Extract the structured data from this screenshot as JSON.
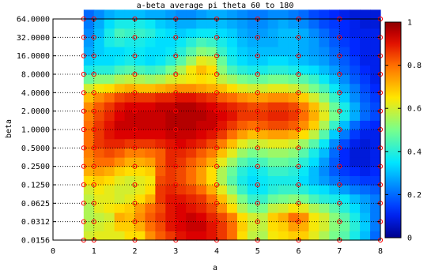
{
  "chart_data": {
    "type": "heatmap",
    "title": "a-beta average pi theta 60 to 180",
    "xlabel": "a",
    "ylabel": "beta",
    "x_ticks": [
      "0",
      "1",
      "2",
      "3",
      "4",
      "5",
      "6",
      "7",
      "8"
    ],
    "y_ticks": [
      "0.0156",
      "0.0312",
      "0.0625",
      "0.1250",
      "0.2500",
      "0.5000",
      "1.0000",
      "2.0000",
      "4.0000",
      "8.0000",
      "16.0000",
      "32.0000",
      "64.0000"
    ],
    "xlim": [
      0,
      8
    ],
    "y_log2_range": [
      -6,
      6
    ],
    "colorbar": {
      "ticks": [
        "0",
        "0.2",
        "0.4",
        "0.6",
        "0.8",
        "1"
      ],
      "range": [
        0,
        1
      ]
    },
    "grid": true,
    "sample_points": {
      "a": [
        0.75,
        1,
        2,
        3,
        4,
        5,
        6,
        7,
        8
      ],
      "beta_exponent": [
        -6,
        -5,
        -4,
        -3,
        -2,
        -1,
        0,
        1,
        2,
        3,
        4,
        5,
        6
      ]
    },
    "grid_values": {
      "x_step": 0.25,
      "x_start": 0.75,
      "y_step": 0.5,
      "y_start": -6,
      "rows_bottom_to_top": [
        [
          0.6,
          0.62,
          0.62,
          0.62,
          0.66,
          0.66,
          0.76,
          0.82,
          0.86,
          0.9,
          0.92,
          0.92,
          0.9,
          0.86,
          0.8,
          0.66,
          0.58,
          0.56,
          0.64,
          0.66,
          0.68,
          0.68,
          0.62,
          0.56,
          0.5,
          0.46,
          0.38,
          0.3,
          0.2
        ],
        [
          0.58,
          0.6,
          0.62,
          0.68,
          0.68,
          0.72,
          0.8,
          0.84,
          0.9,
          0.92,
          0.94,
          0.94,
          0.9,
          0.86,
          0.8,
          0.68,
          0.6,
          0.58,
          0.66,
          0.68,
          0.74,
          0.72,
          0.64,
          0.6,
          0.52,
          0.48,
          0.4,
          0.32,
          0.22
        ],
        [
          0.56,
          0.58,
          0.6,
          0.72,
          0.7,
          0.76,
          0.82,
          0.86,
          0.9,
          0.92,
          0.94,
          0.92,
          0.88,
          0.84,
          0.78,
          0.66,
          0.6,
          0.58,
          0.68,
          0.72,
          0.8,
          0.76,
          0.64,
          0.6,
          0.52,
          0.46,
          0.38,
          0.3,
          0.22
        ],
        [
          0.56,
          0.62,
          0.64,
          0.66,
          0.68,
          0.74,
          0.8,
          0.84,
          0.9,
          0.92,
          0.9,
          0.88,
          0.84,
          0.76,
          0.66,
          0.56,
          0.5,
          0.5,
          0.58,
          0.6,
          0.64,
          0.62,
          0.56,
          0.52,
          0.46,
          0.4,
          0.34,
          0.28,
          0.22
        ],
        [
          0.58,
          0.62,
          0.62,
          0.6,
          0.62,
          0.66,
          0.72,
          0.86,
          0.9,
          0.9,
          0.88,
          0.86,
          0.8,
          0.7,
          0.6,
          0.5,
          0.42,
          0.42,
          0.48,
          0.5,
          0.52,
          0.5,
          0.44,
          0.4,
          0.38,
          0.36,
          0.3,
          0.26,
          0.22
        ],
        [
          0.6,
          0.64,
          0.62,
          0.6,
          0.6,
          0.62,
          0.66,
          0.86,
          0.88,
          0.86,
          0.84,
          0.8,
          0.72,
          0.62,
          0.52,
          0.42,
          0.36,
          0.36,
          0.4,
          0.42,
          0.42,
          0.4,
          0.36,
          0.34,
          0.3,
          0.26,
          0.22,
          0.2,
          0.18
        ],
        [
          0.66,
          0.68,
          0.66,
          0.62,
          0.6,
          0.62,
          0.64,
          0.84,
          0.86,
          0.84,
          0.8,
          0.74,
          0.66,
          0.56,
          0.46,
          0.38,
          0.34,
          0.36,
          0.38,
          0.38,
          0.38,
          0.34,
          0.3,
          0.26,
          0.22,
          0.18,
          0.16,
          0.14,
          0.14
        ],
        [
          0.72,
          0.74,
          0.72,
          0.68,
          0.66,
          0.66,
          0.68,
          0.82,
          0.86,
          0.84,
          0.8,
          0.74,
          0.66,
          0.56,
          0.48,
          0.4,
          0.36,
          0.38,
          0.42,
          0.42,
          0.4,
          0.36,
          0.3,
          0.24,
          0.18,
          0.14,
          0.12,
          0.1,
          0.12
        ],
        [
          0.76,
          0.8,
          0.8,
          0.76,
          0.72,
          0.72,
          0.74,
          0.82,
          0.88,
          0.86,
          0.82,
          0.78,
          0.72,
          0.62,
          0.54,
          0.46,
          0.42,
          0.44,
          0.48,
          0.48,
          0.46,
          0.4,
          0.34,
          0.26,
          0.18,
          0.12,
          0.08,
          0.08,
          0.1
        ],
        [
          0.78,
          0.82,
          0.84,
          0.82,
          0.78,
          0.78,
          0.8,
          0.82,
          0.88,
          0.88,
          0.86,
          0.82,
          0.78,
          0.7,
          0.62,
          0.54,
          0.5,
          0.52,
          0.54,
          0.54,
          0.52,
          0.46,
          0.38,
          0.3,
          0.2,
          0.12,
          0.08,
          0.08,
          0.1
        ],
        [
          0.8,
          0.86,
          0.88,
          0.88,
          0.86,
          0.86,
          0.86,
          0.88,
          0.9,
          0.92,
          0.9,
          0.88,
          0.84,
          0.78,
          0.7,
          0.62,
          0.58,
          0.6,
          0.62,
          0.62,
          0.6,
          0.54,
          0.46,
          0.36,
          0.24,
          0.16,
          0.1,
          0.08,
          0.1
        ],
        [
          0.8,
          0.86,
          0.9,
          0.92,
          0.92,
          0.92,
          0.92,
          0.92,
          0.94,
          0.94,
          0.94,
          0.92,
          0.9,
          0.86,
          0.8,
          0.74,
          0.7,
          0.72,
          0.74,
          0.74,
          0.72,
          0.66,
          0.58,
          0.46,
          0.32,
          0.22,
          0.14,
          0.1,
          0.1
        ],
        [
          0.8,
          0.86,
          0.9,
          0.94,
          0.94,
          0.94,
          0.94,
          0.94,
          0.96,
          0.96,
          0.96,
          0.94,
          0.94,
          0.9,
          0.86,
          0.82,
          0.8,
          0.82,
          0.84,
          0.84,
          0.82,
          0.76,
          0.68,
          0.56,
          0.42,
          0.3,
          0.2,
          0.14,
          0.12
        ],
        [
          0.78,
          0.84,
          0.88,
          0.92,
          0.94,
          0.94,
          0.94,
          0.94,
          0.96,
          0.96,
          0.96,
          0.96,
          0.94,
          0.92,
          0.9,
          0.86,
          0.86,
          0.86,
          0.88,
          0.88,
          0.86,
          0.8,
          0.72,
          0.62,
          0.5,
          0.38,
          0.28,
          0.2,
          0.16
        ],
        [
          0.76,
          0.82,
          0.86,
          0.9,
          0.92,
          0.92,
          0.92,
          0.94,
          0.94,
          0.96,
          0.96,
          0.94,
          0.92,
          0.9,
          0.88,
          0.86,
          0.84,
          0.84,
          0.86,
          0.86,
          0.84,
          0.78,
          0.7,
          0.6,
          0.48,
          0.38,
          0.28,
          0.2,
          0.16
        ],
        [
          0.7,
          0.76,
          0.8,
          0.84,
          0.86,
          0.86,
          0.86,
          0.88,
          0.88,
          0.9,
          0.9,
          0.88,
          0.86,
          0.82,
          0.8,
          0.76,
          0.74,
          0.74,
          0.76,
          0.76,
          0.74,
          0.68,
          0.6,
          0.52,
          0.42,
          0.32,
          0.24,
          0.18,
          0.14
        ],
        [
          0.6,
          0.64,
          0.66,
          0.7,
          0.72,
          0.7,
          0.7,
          0.72,
          0.74,
          0.76,
          0.76,
          0.74,
          0.72,
          0.7,
          0.66,
          0.62,
          0.6,
          0.6,
          0.62,
          0.62,
          0.6,
          0.56,
          0.5,
          0.44,
          0.36,
          0.28,
          0.22,
          0.16,
          0.12
        ],
        [
          0.48,
          0.52,
          0.52,
          0.56,
          0.58,
          0.56,
          0.54,
          0.56,
          0.6,
          0.62,
          0.64,
          0.66,
          0.64,
          0.58,
          0.54,
          0.5,
          0.48,
          0.48,
          0.5,
          0.5,
          0.48,
          0.46,
          0.42,
          0.36,
          0.3,
          0.24,
          0.18,
          0.14,
          0.1
        ],
        [
          0.38,
          0.4,
          0.4,
          0.44,
          0.46,
          0.44,
          0.42,
          0.44,
          0.5,
          0.56,
          0.64,
          0.7,
          0.66,
          0.52,
          0.44,
          0.4,
          0.38,
          0.38,
          0.4,
          0.4,
          0.38,
          0.36,
          0.34,
          0.3,
          0.26,
          0.2,
          0.16,
          0.12,
          0.1
        ],
        [
          0.32,
          0.34,
          0.34,
          0.36,
          0.38,
          0.36,
          0.34,
          0.36,
          0.4,
          0.46,
          0.54,
          0.62,
          0.6,
          0.48,
          0.38,
          0.34,
          0.32,
          0.32,
          0.34,
          0.34,
          0.32,
          0.3,
          0.28,
          0.26,
          0.22,
          0.18,
          0.14,
          0.1,
          0.1
        ],
        [
          0.28,
          0.32,
          0.34,
          0.34,
          0.36,
          0.36,
          0.34,
          0.34,
          0.36,
          0.4,
          0.46,
          0.52,
          0.5,
          0.42,
          0.36,
          0.32,
          0.3,
          0.3,
          0.3,
          0.3,
          0.3,
          0.28,
          0.26,
          0.24,
          0.2,
          0.16,
          0.12,
          0.1,
          0.1
        ],
        [
          0.26,
          0.32,
          0.38,
          0.4,
          0.38,
          0.38,
          0.36,
          0.34,
          0.34,
          0.36,
          0.4,
          0.44,
          0.42,
          0.38,
          0.34,
          0.3,
          0.28,
          0.28,
          0.28,
          0.3,
          0.3,
          0.28,
          0.26,
          0.22,
          0.18,
          0.14,
          0.12,
          0.1,
          0.1
        ],
        [
          0.24,
          0.3,
          0.38,
          0.44,
          0.42,
          0.42,
          0.4,
          0.36,
          0.34,
          0.32,
          0.34,
          0.36,
          0.36,
          0.34,
          0.32,
          0.28,
          0.26,
          0.26,
          0.28,
          0.3,
          0.3,
          0.28,
          0.24,
          0.2,
          0.16,
          0.12,
          0.1,
          0.1,
          0.1
        ],
        [
          0.22,
          0.28,
          0.34,
          0.38,
          0.38,
          0.38,
          0.36,
          0.32,
          0.3,
          0.28,
          0.28,
          0.3,
          0.3,
          0.3,
          0.28,
          0.26,
          0.24,
          0.24,
          0.26,
          0.28,
          0.26,
          0.24,
          0.2,
          0.16,
          0.14,
          0.12,
          0.1,
          0.08,
          0.08
        ],
        [
          0.2,
          0.24,
          0.28,
          0.3,
          0.3,
          0.3,
          0.28,
          0.28,
          0.26,
          0.24,
          0.24,
          0.26,
          0.28,
          0.28,
          0.26,
          0.24,
          0.22,
          0.22,
          0.24,
          0.24,
          0.22,
          0.2,
          0.16,
          0.14,
          0.12,
          0.1,
          0.08,
          0.08,
          0.08
        ]
      ]
    }
  }
}
